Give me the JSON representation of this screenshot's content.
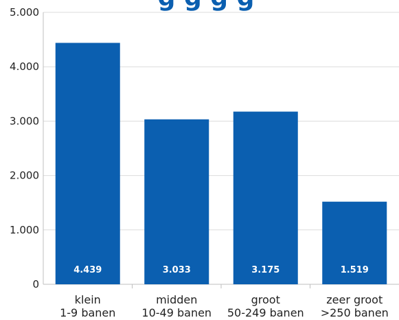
{
  "colors": {
    "bar": "#0b5fb0",
    "label": "#ffffff",
    "grid": "#dcdcdc",
    "text": "#222222",
    "title": "#0b5fb0"
  },
  "title_fragment": "g g g g",
  "chart_data": {
    "type": "bar",
    "categories": [
      [
        "klein",
        "1-9 banen"
      ],
      [
        "midden",
        "10-49 banen"
      ],
      [
        "groot",
        "50-249 banen"
      ],
      [
        "zeer groot",
        ">250 banen"
      ]
    ],
    "values": [
      4439,
      3033,
      3175,
      1519
    ],
    "data_labels": [
      "4.439",
      "3.033",
      "3.175",
      "1.519"
    ],
    "yticks": [
      0,
      1000,
      2000,
      3000,
      4000,
      5000
    ],
    "ytick_labels": [
      "0",
      "1.000",
      "2.000",
      "3.000",
      "4.000",
      "5.000"
    ],
    "ylim": [
      0,
      5000
    ],
    "grid": true,
    "legend": "none"
  }
}
